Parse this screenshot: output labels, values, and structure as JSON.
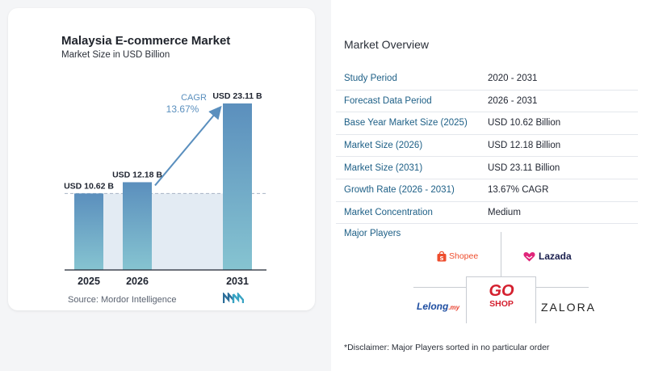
{
  "chart_data": {
    "type": "bar",
    "title": "Malaysia E-commerce Market",
    "subtitle": "Market Size in USD Billion",
    "categories": [
      "2025",
      "2026",
      "2031"
    ],
    "values": [
      10.62,
      12.18,
      23.11
    ],
    "data_labels": [
      "USD 10.62 B",
      "USD 12.18 B",
      "USD 23.11 B"
    ],
    "cagr_label": "CAGR",
    "cagr_value": "13.67%",
    "grid": false,
    "source": "Source:  Mordor Intelligence",
    "colors": {
      "bar_top": "#5b8fbd",
      "bar_bottom": "#86c4d1",
      "area": "#e3ebf3",
      "arrow": "#5a8fbe"
    }
  },
  "overview": {
    "title": "Market Overview",
    "rows": [
      {
        "label": "Study Period",
        "value": "2020 - 2031"
      },
      {
        "label": "Forecast Data Period",
        "value": "2026 - 2031"
      },
      {
        "label": "Base Year Market Size (2025)",
        "value": "USD 10.62 Billion"
      },
      {
        "label": "Market Size (2026)",
        "value": "USD 12.18 Billion"
      },
      {
        "label": "Market Size (2031)",
        "value": "USD 23.11 Billion"
      },
      {
        "label": "Growth Rate (2026 - 2031)",
        "value": "13.67% CAGR"
      },
      {
        "label": "Market Concentration",
        "value": "Medium"
      }
    ]
  },
  "players": {
    "title": "Major Players",
    "shopee": "Shopee",
    "lazada": "Lazada",
    "lelong": "Lelong",
    "lelong_suffix": ".my",
    "goshop_top": "GO",
    "goshop_bottom": "SHOP",
    "zalora": "ZALORA"
  },
  "disclaimer": "*Disclaimer: Major Players sorted in no particular order"
}
